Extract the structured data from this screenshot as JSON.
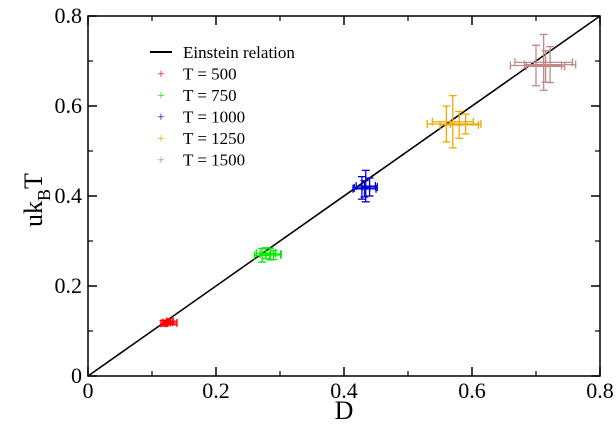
{
  "chart_data": {
    "type": "scatter",
    "title": "",
    "xlabel": "D",
    "ylabel": {
      "main": "uk",
      "sub": "B",
      "tail": "T"
    },
    "xlim": [
      0,
      0.8
    ],
    "ylim": [
      0,
      0.8
    ],
    "x_ticks": [
      "0",
      "0.2",
      "0.4",
      "0.6",
      "0.8"
    ],
    "y_ticks": [
      "0",
      "0.2",
      "0.4",
      "0.6",
      "0.8"
    ],
    "grid": false,
    "legend_position": "top-left",
    "reference_line": {
      "name": "Einstein relation",
      "color": "#000000",
      "points": [
        [
          0,
          0
        ],
        [
          0.8,
          0.8
        ]
      ]
    },
    "series": [
      {
        "name": "T = 500",
        "color": "#ff0000",
        "points": [
          {
            "x": 0.118,
            "y": 0.117,
            "xerr": 0.004,
            "yerr": 0.006
          },
          {
            "x": 0.123,
            "y": 0.119,
            "xerr": 0.006,
            "yerr": 0.005
          },
          {
            "x": 0.128,
            "y": 0.121,
            "xerr": 0.005,
            "yerr": 0.006
          },
          {
            "x": 0.132,
            "y": 0.118,
            "xerr": 0.007,
            "yerr": 0.004
          }
        ]
      },
      {
        "name": "T = 750",
        "color": "#00ee00",
        "points": [
          {
            "x": 0.272,
            "y": 0.268,
            "xerr": 0.012,
            "yerr": 0.015
          },
          {
            "x": 0.278,
            "y": 0.273,
            "xerr": 0.015,
            "yerr": 0.012
          },
          {
            "x": 0.285,
            "y": 0.271,
            "xerr": 0.016,
            "yerr": 0.013
          },
          {
            "x": 0.29,
            "y": 0.269,
            "xerr": 0.012,
            "yerr": 0.01
          }
        ]
      },
      {
        "name": "T = 1000",
        "color": "#0000cc",
        "points": [
          {
            "x": 0.428,
            "y": 0.418,
            "xerr": 0.012,
            "yerr": 0.025
          },
          {
            "x": 0.434,
            "y": 0.422,
            "xerr": 0.015,
            "yerr": 0.035
          },
          {
            "x": 0.44,
            "y": 0.42,
            "xerr": 0.012,
            "yerr": 0.02
          },
          {
            "x": 0.432,
            "y": 0.416,
            "xerr": 0.018,
            "yerr": 0.018
          }
        ]
      },
      {
        "name": "T = 1250",
        "color": "#eeaa00",
        "points": [
          {
            "x": 0.56,
            "y": 0.56,
            "xerr": 0.03,
            "yerr": 0.04
          },
          {
            "x": 0.57,
            "y": 0.565,
            "xerr": 0.032,
            "yerr": 0.058
          },
          {
            "x": 0.58,
            "y": 0.558,
            "xerr": 0.03,
            "yerr": 0.03
          },
          {
            "x": 0.59,
            "y": 0.56,
            "xerr": 0.024,
            "yerr": 0.022
          }
        ]
      },
      {
        "name": "T = 1500",
        "color": "#c08888",
        "points": [
          {
            "x": 0.7,
            "y": 0.69,
            "xerr": 0.04,
            "yerr": 0.045
          },
          {
            "x": 0.712,
            "y": 0.697,
            "xerr": 0.045,
            "yerr": 0.062
          },
          {
            "x": 0.722,
            "y": 0.692,
            "xerr": 0.04,
            "yerr": 0.04
          },
          {
            "x": 0.715,
            "y": 0.688,
            "xerr": 0.03,
            "yerr": 0.035
          }
        ]
      }
    ]
  }
}
